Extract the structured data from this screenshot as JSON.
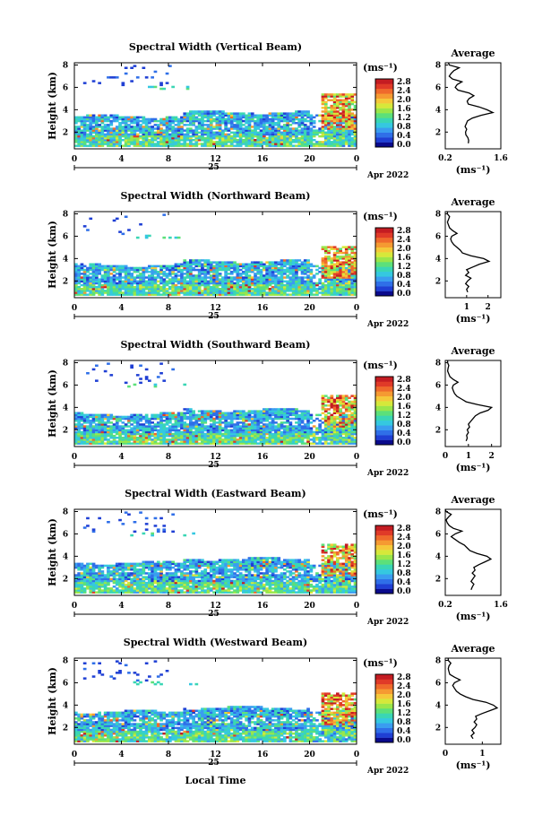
{
  "figure": {
    "date_label": "Apr 2022",
    "day_label": "25",
    "x_axis_label": "Local Time",
    "y_axis_label": "Height (km)",
    "colorbar_units": "(ms⁻¹)",
    "avg_title": "Average",
    "avg_units": "(ms⁻¹)"
  },
  "colorbar": {
    "colors": [
      "#0a0a8c",
      "#1f3fd4",
      "#2f6fe8",
      "#3a9df0",
      "#35c8e0",
      "#3ad6b4",
      "#5ce07a",
      "#9ae64a",
      "#d6e83a",
      "#f5c83a",
      "#f59a32",
      "#ef6a2c",
      "#e03a28",
      "#c41c22"
    ],
    "labels": [
      "0.0",
      "0.4",
      "0.8",
      "1.2",
      "1.6",
      "2.0",
      "2.4",
      "2.8"
    ]
  },
  "chart_data": [
    {
      "type": "heatmap",
      "title": "Spectral Width (Vertical Beam)",
      "xlabel": "",
      "ylabel": "Height (km)",
      "x_ticks": [
        "0",
        "4",
        "8",
        "12",
        "16",
        "20",
        "0"
      ],
      "y_ticks": [
        "2",
        "4",
        "6",
        "8"
      ],
      "xlim": [
        0,
        24
      ],
      "ylim": [
        0.5,
        8.2
      ],
      "color_range": [
        0.0,
        2.8
      ],
      "profile": {
        "type": "line",
        "title": "Average",
        "xlabel": "(ms⁻¹)",
        "ylabel": "",
        "x_ticks": [
          "0.2",
          "1.6"
        ],
        "xlim": [
          0.2,
          1.6
        ],
        "ylim": [
          0.5,
          8.2
        ],
        "x": [
          0.78,
          0.79,
          0.77,
          0.72,
          0.71,
          0.74,
          0.7,
          0.73,
          0.76,
          0.88,
          1.1,
          1.4,
          1.25,
          1.05,
          0.78,
          0.75,
          0.8,
          0.92,
          0.8,
          0.52,
          0.45,
          0.5,
          0.62,
          0.38,
          0.3,
          0.35,
          0.42,
          0.55,
          0.3,
          0.28
        ],
        "y": [
          1.0,
          1.25,
          1.5,
          1.75,
          2.0,
          2.25,
          2.5,
          2.75,
          3.0,
          3.25,
          3.5,
          3.75,
          4.0,
          4.25,
          4.5,
          4.75,
          5.0,
          5.25,
          5.5,
          5.75,
          6.0,
          6.25,
          6.5,
          6.75,
          7.0,
          7.25,
          7.5,
          7.75,
          8.0,
          8.2
        ]
      }
    },
    {
      "type": "heatmap",
      "title": "Spectral Width (Northward Beam)",
      "xlabel": "",
      "ylabel": "Height (km)",
      "x_ticks": [
        "0",
        "4",
        "8",
        "12",
        "16",
        "20",
        "0"
      ],
      "y_ticks": [
        "2",
        "4",
        "6",
        "8"
      ],
      "xlim": [
        0,
        24
      ],
      "ylim": [
        0.5,
        8.2
      ],
      "color_range": [
        0.0,
        2.8
      ],
      "profile": {
        "type": "line",
        "title": "Average",
        "xlabel": "(ms⁻¹)",
        "ylabel": "",
        "x_ticks": [
          "1",
          "2"
        ],
        "xlim": [
          0.0,
          2.6
        ],
        "ylim": [
          0.5,
          8.2
        ],
        "x": [
          1.05,
          1.0,
          1.1,
          0.95,
          1.05,
          1.2,
          0.95,
          1.1,
          1.0,
          1.3,
          1.6,
          2.05,
          1.8,
          1.2,
          0.8,
          0.7,
          0.55,
          0.4,
          0.3,
          0.25,
          0.3,
          0.55,
          0.35,
          0.2,
          0.15,
          0.1,
          0.15,
          0.2,
          0.1,
          0.1
        ],
        "y": [
          1.0,
          1.25,
          1.5,
          1.75,
          2.0,
          2.25,
          2.5,
          2.75,
          3.0,
          3.25,
          3.5,
          3.75,
          4.0,
          4.25,
          4.5,
          4.75,
          5.0,
          5.25,
          5.5,
          5.75,
          6.0,
          6.25,
          6.5,
          6.75,
          7.0,
          7.25,
          7.5,
          7.75,
          8.0,
          8.2
        ]
      }
    },
    {
      "type": "heatmap",
      "title": "Spectral Width (Southward Beam)",
      "xlabel": "",
      "ylabel": "Height (km)",
      "x_ticks": [
        "0",
        "4",
        "8",
        "12",
        "16",
        "20",
        "0"
      ],
      "y_ticks": [
        "2",
        "4",
        "6",
        "8"
      ],
      "xlim": [
        0,
        24
      ],
      "ylim": [
        0.5,
        8.2
      ],
      "color_range": [
        0.0,
        2.8
      ],
      "profile": {
        "type": "line",
        "title": "Average",
        "xlabel": "(ms⁻¹)",
        "ylabel": "",
        "x_ticks": [
          "0",
          "1",
          "2"
        ],
        "xlim": [
          0.0,
          2.4
        ],
        "ylim": [
          0.5,
          8.2
        ],
        "x": [
          0.9,
          0.95,
          0.92,
          1.0,
          0.95,
          1.05,
          1.0,
          1.1,
          1.2,
          1.3,
          1.5,
          1.85,
          2.0,
          1.4,
          0.9,
          0.7,
          0.5,
          0.4,
          0.35,
          0.3,
          0.35,
          0.55,
          0.35,
          0.2,
          0.15,
          0.1,
          0.12,
          0.15,
          0.1,
          0.1
        ],
        "y": [
          1.0,
          1.25,
          1.5,
          1.75,
          2.0,
          2.25,
          2.5,
          2.75,
          3.0,
          3.25,
          3.5,
          3.75,
          4.0,
          4.25,
          4.5,
          4.75,
          5.0,
          5.25,
          5.5,
          5.75,
          6.0,
          6.25,
          6.5,
          6.75,
          7.0,
          7.25,
          7.5,
          7.75,
          8.0,
          8.2
        ]
      }
    },
    {
      "type": "heatmap",
      "title": "Spectral Width (Eastward Beam)",
      "xlabel": "",
      "ylabel": "Height (km)",
      "x_ticks": [
        "0",
        "4",
        "8",
        "12",
        "16",
        "20",
        "0"
      ],
      "y_ticks": [
        "2",
        "4",
        "6",
        "8"
      ],
      "xlim": [
        0,
        24
      ],
      "ylim": [
        0.5,
        8.2
      ],
      "color_range": [
        0.0,
        2.8
      ],
      "profile": {
        "type": "line",
        "title": "Average",
        "xlabel": "(ms⁻¹)",
        "ylabel": "",
        "x_ticks": [
          "0.2",
          "1.6"
        ],
        "xlim": [
          0.2,
          1.6
        ],
        "ylim": [
          0.5,
          8.2
        ],
        "x": [
          0.85,
          0.88,
          0.92,
          0.85,
          0.9,
          0.95,
          0.88,
          0.95,
          0.92,
          1.05,
          1.2,
          1.35,
          1.25,
          1.0,
          0.82,
          0.75,
          0.68,
          0.55,
          0.45,
          0.35,
          0.45,
          0.62,
          0.4,
          0.3,
          0.25,
          0.22,
          0.28,
          0.35,
          0.22,
          0.2
        ],
        "y": [
          1.0,
          1.25,
          1.5,
          1.75,
          2.0,
          2.25,
          2.5,
          2.75,
          3.0,
          3.25,
          3.5,
          3.75,
          4.0,
          4.25,
          4.5,
          4.75,
          5.0,
          5.25,
          5.5,
          5.75,
          6.0,
          6.25,
          6.5,
          6.75,
          7.0,
          7.25,
          7.5,
          7.75,
          8.0,
          8.2
        ]
      }
    },
    {
      "type": "heatmap",
      "title": "Spectral Width (Westward Beam)",
      "xlabel": "Local Time",
      "ylabel": "Height (km)",
      "x_ticks": [
        "0",
        "4",
        "8",
        "12",
        "16",
        "20",
        "0"
      ],
      "y_ticks": [
        "2",
        "4",
        "6",
        "8"
      ],
      "xlim": [
        0,
        24
      ],
      "ylim": [
        0.5,
        8.2
      ],
      "color_range": [
        0.0,
        2.8
      ],
      "profile": {
        "type": "line",
        "title": "Average",
        "xlabel": "(ms⁻¹)",
        "ylabel": "",
        "x_ticks": [
          "0",
          "1"
        ],
        "xlim": [
          0.0,
          1.5
        ],
        "ylim": [
          0.5,
          8.2
        ],
        "x": [
          0.75,
          0.7,
          0.78,
          0.72,
          0.8,
          0.85,
          0.78,
          0.85,
          0.82,
          1.0,
          1.2,
          1.4,
          1.3,
          1.1,
          0.75,
          0.55,
          0.4,
          0.3,
          0.25,
          0.2,
          0.25,
          0.4,
          0.25,
          0.12,
          0.1,
          0.08,
          0.1,
          0.15,
          0.08,
          0.08
        ],
        "y": [
          1.0,
          1.25,
          1.5,
          1.75,
          2.0,
          2.25,
          2.5,
          2.75,
          3.0,
          3.25,
          3.5,
          3.75,
          4.0,
          4.25,
          4.5,
          4.75,
          5.0,
          5.25,
          5.5,
          5.75,
          6.0,
          6.25,
          6.5,
          6.75,
          7.0,
          7.25,
          7.5,
          7.75,
          8.0,
          8.2
        ]
      }
    }
  ]
}
